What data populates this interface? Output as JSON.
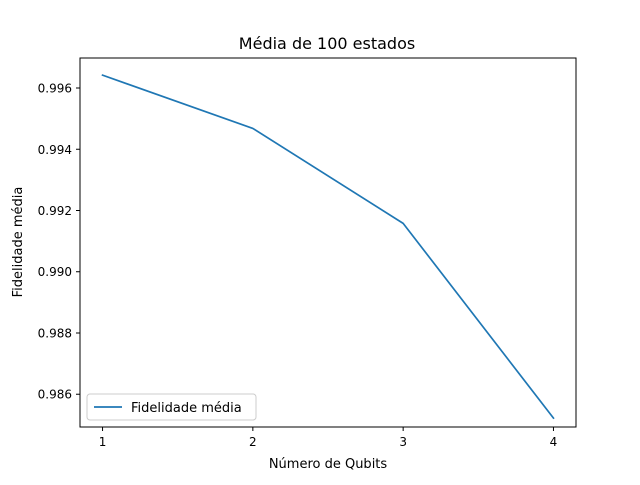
{
  "chart_data": {
    "type": "line",
    "title": "Média de 100 estados",
    "xlabel": "Número de Qubits",
    "ylabel": "Fidelidade média",
    "x": [
      1,
      2,
      3,
      4
    ],
    "series": [
      {
        "name": "Fidelidade média",
        "color": "#1f77b4",
        "values": [
          0.99642,
          0.99468,
          0.99158,
          0.98522
        ]
      }
    ],
    "xlim": [
      0.85,
      4.15
    ],
    "ylim": [
      0.98493,
      0.99698
    ],
    "xticks": [
      1,
      2,
      3,
      4
    ],
    "xtick_labels": [
      "1",
      "2",
      "3",
      "4"
    ],
    "yticks": [
      0.986,
      0.988,
      0.99,
      0.992,
      0.994,
      0.996
    ],
    "ytick_labels": [
      "0.986",
      "0.988",
      "0.990",
      "0.992",
      "0.994",
      "0.996"
    ],
    "grid": false,
    "legend_position": "lower left"
  }
}
